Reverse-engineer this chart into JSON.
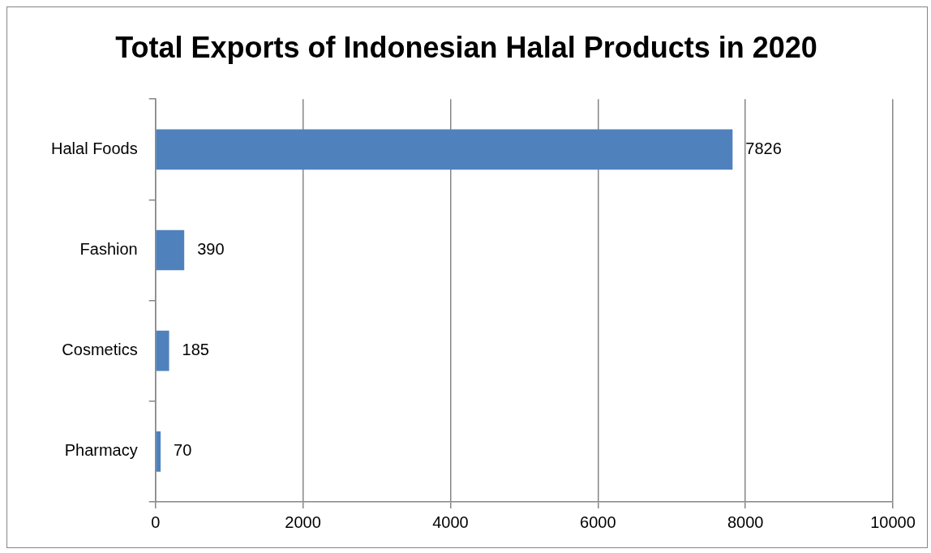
{
  "chart_data": {
    "type": "bar",
    "title": "Total Exports of Indonesian Halal Products in 2020",
    "orientation": "horizontal",
    "categories": [
      "Halal Foods",
      "Fashion",
      "Cosmetics",
      "Pharmacy"
    ],
    "values": [
      7826,
      390,
      185,
      70
    ],
    "color": "#4f81bd",
    "xlim": [
      0,
      10000
    ],
    "xticks": [
      0,
      2000,
      4000,
      6000,
      8000,
      10000
    ],
    "grid": "x",
    "legend": false,
    "data_labels": true
  }
}
